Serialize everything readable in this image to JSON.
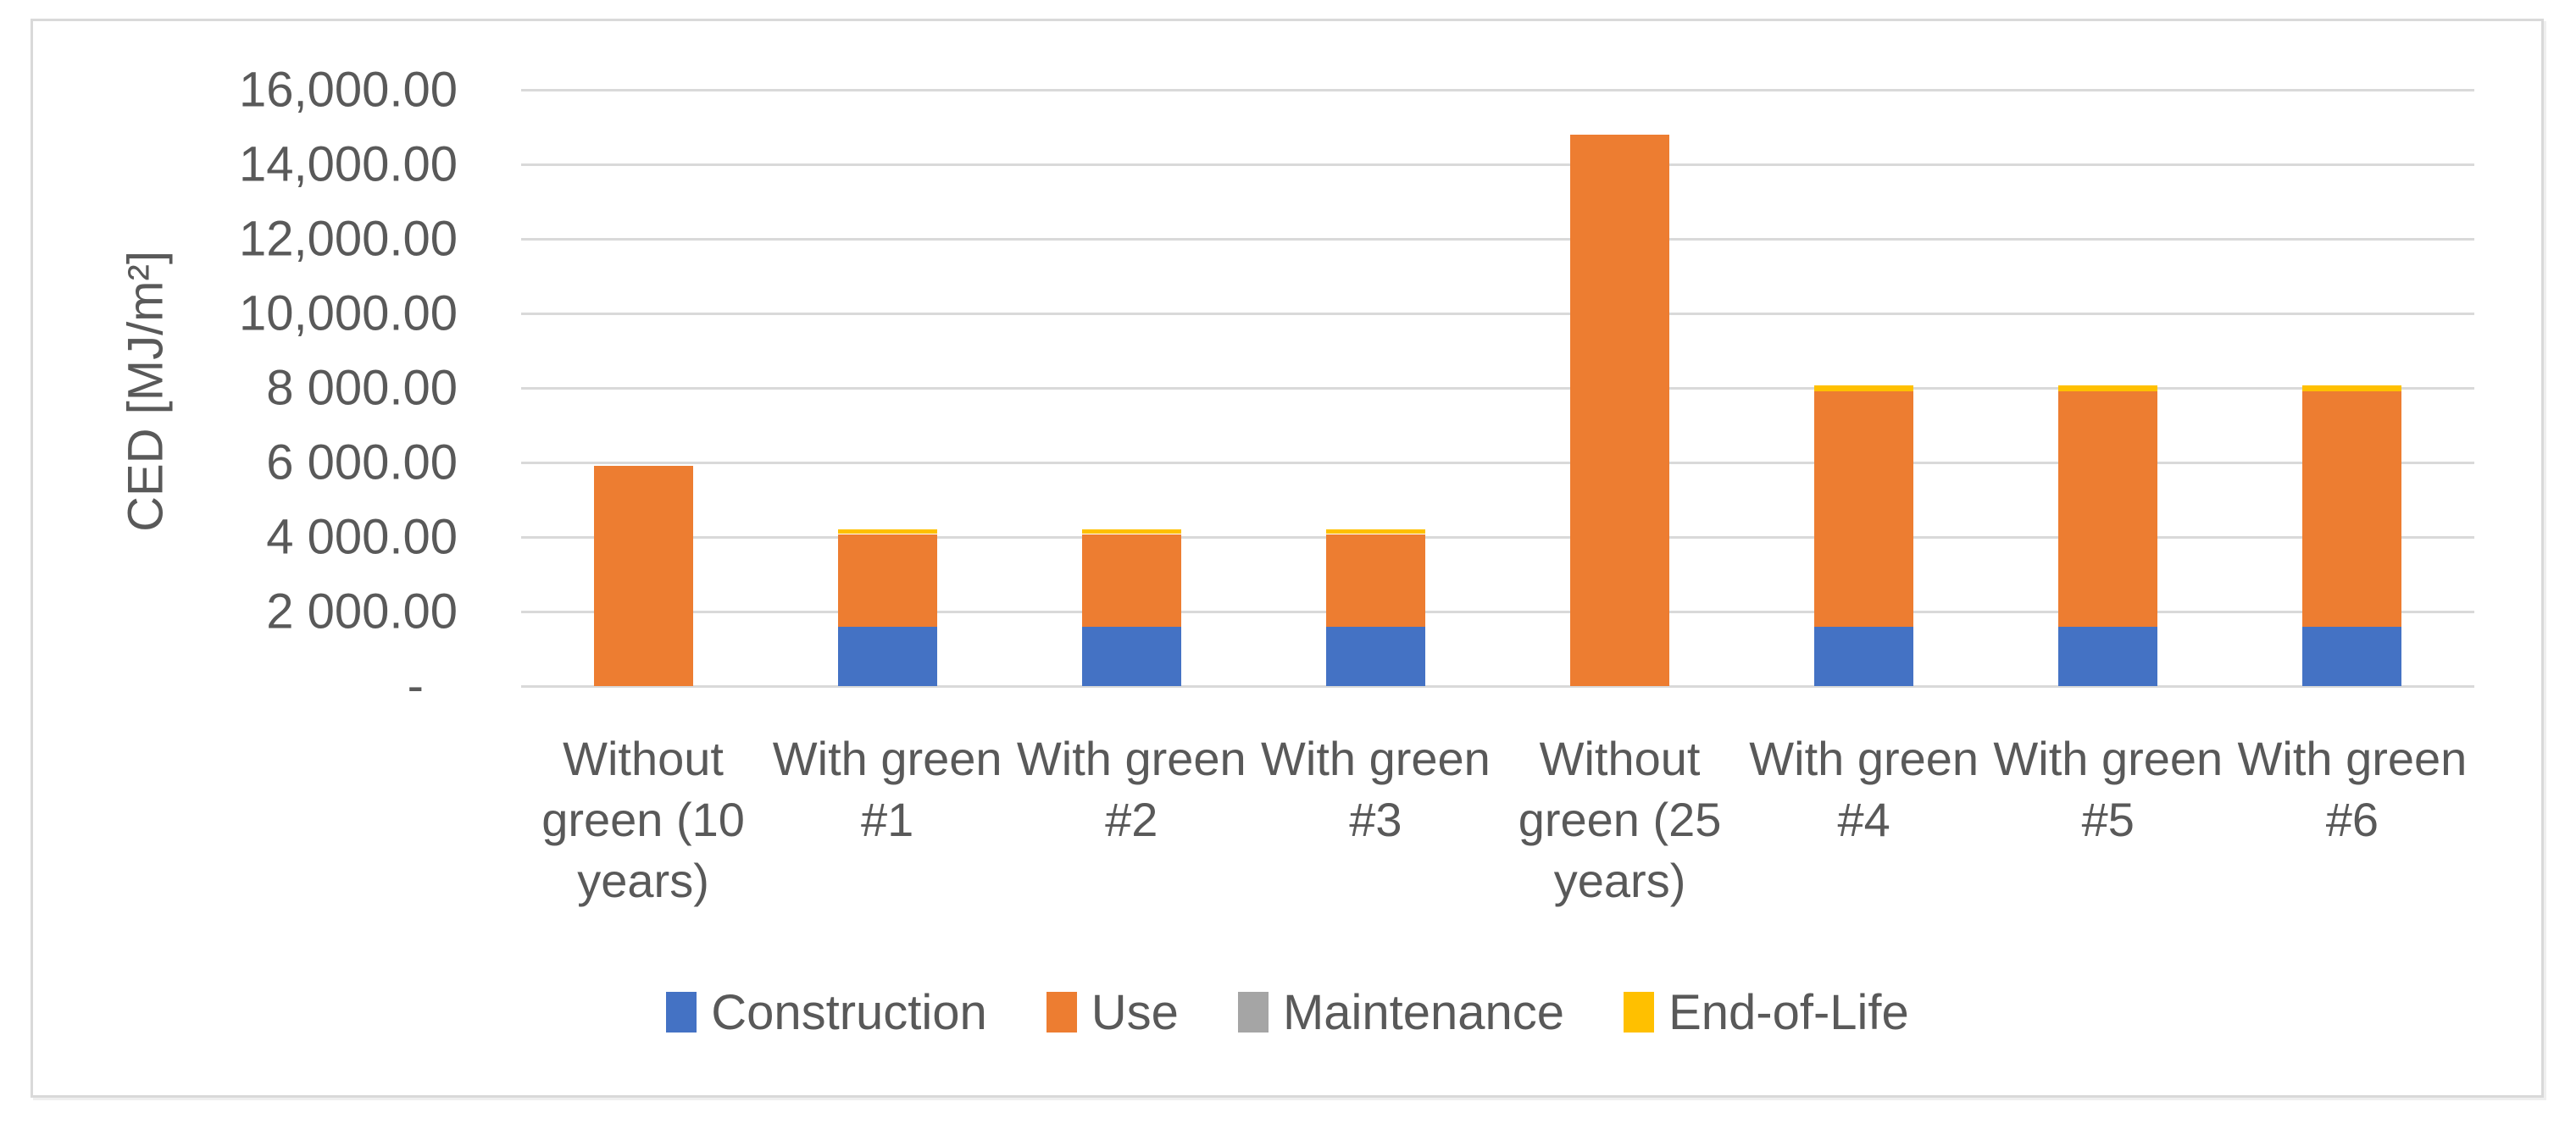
{
  "colors": {
    "background": "#FFFFFF",
    "chart_border": "#D9D9D9",
    "gridline": "#D9D9D9",
    "axis_text": "#595959"
  },
  "chart_data": {
    "type": "bar",
    "stacked": true,
    "title": "",
    "xlabel": "",
    "ylabel": "CED [MJ/m²]",
    "ylim": [
      0,
      16000
    ],
    "grid": true,
    "legend_position": "bottom",
    "categories": [
      "Without green (10 years)",
      "With green #1",
      "With green #2",
      "With green #3",
      "Without green (25 years)",
      "With green #4",
      "With green #5",
      "With green #6"
    ],
    "series": [
      {
        "name": "Construction",
        "color": "#4472C4",
        "values": [
          0,
          1600,
          1600,
          1600,
          0,
          1600,
          1600,
          1600
        ]
      },
      {
        "name": "Use",
        "color": "#ED7D31",
        "values": [
          5900,
          2480,
          2480,
          2480,
          14800,
          6300,
          6300,
          6300
        ]
      },
      {
        "name": "Maintenance",
        "color": "#A5A5A5",
        "values": [
          0,
          0,
          0,
          0,
          0,
          0,
          0,
          0
        ]
      },
      {
        "name": "End-of-Life",
        "color": "#FFC000",
        "values": [
          0,
          120,
          120,
          120,
          0,
          160,
          160,
          160
        ]
      }
    ],
    "y_ticks": [
      {
        "value": 16000,
        "label": "16,000.00"
      },
      {
        "value": 14000,
        "label": "14,000.00"
      },
      {
        "value": 12000,
        "label": "12,000.00"
      },
      {
        "value": 10000,
        "label": "10,000.00"
      },
      {
        "value": 8000,
        "label": "8 000.00"
      },
      {
        "value": 6000,
        "label": "6 000.00"
      },
      {
        "value": 4000,
        "label": "4 000.00"
      },
      {
        "value": 2000,
        "label": "2 000.00"
      },
      {
        "value": 0,
        "label": "-"
      }
    ]
  }
}
